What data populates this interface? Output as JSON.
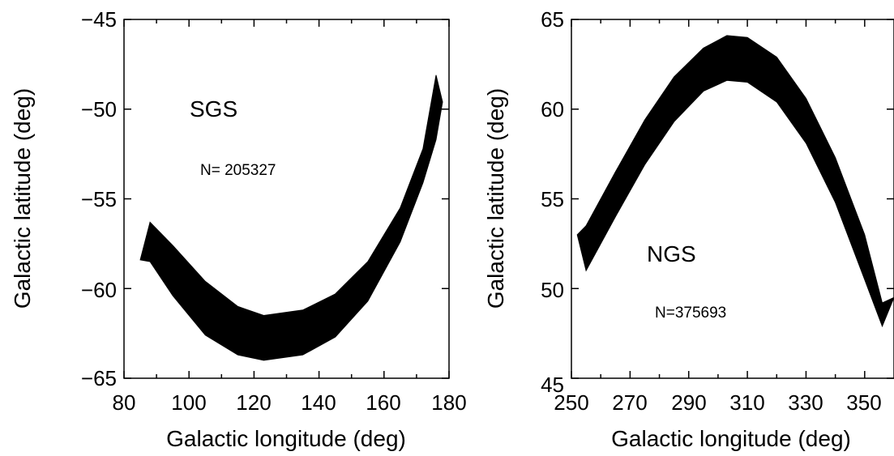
{
  "chart_data": [
    {
      "type": "area",
      "xlabel": "Galactic longitude (deg)",
      "ylabel": "Galactic latitude (deg)",
      "xlim": [
        80,
        180
      ],
      "ylim": [
        -65,
        -45
      ],
      "xticks": [
        "80",
        "100",
        "120",
        "140",
        "160",
        "180"
      ],
      "yticks": [
        "−65",
        "−60",
        "−55",
        "−50",
        "−45"
      ],
      "annotations": [
        "SGS",
        "N= 205327"
      ],
      "series": [
        {
          "x": [
            85,
            88,
            95,
            105,
            115,
            123,
            135,
            145,
            155,
            165,
            172,
            176,
            178
          ],
          "upper": [
            -58.4,
            -56.3,
            -57.6,
            -59.6,
            -61.0,
            -61.5,
            -61.2,
            -60.3,
            -58.5,
            -55.5,
            -52.2,
            -48.1,
            -49.6
          ],
          "lower": [
            -58.4,
            -58.5,
            -60.4,
            -62.6,
            -63.7,
            -64.0,
            -63.7,
            -62.7,
            -60.7,
            -57.4,
            -54.1,
            -51.7,
            -49.6
          ]
        }
      ]
    },
    {
      "type": "area",
      "xlabel": "Galactic longitude (deg)",
      "ylabel": "Galactic latitude (deg)",
      "xlim": [
        250,
        360
      ],
      "ylim": [
        45,
        65
      ],
      "xticks": [
        "250",
        "270",
        "290",
        "310",
        "330",
        "350"
      ],
      "yticks": [
        "45",
        "50",
        "55",
        "60",
        "65"
      ],
      "annotations": [
        "NGS",
        "N=375693"
      ],
      "series": [
        {
          "x": [
            252,
            255,
            265,
            275,
            285,
            295,
            303,
            310,
            320,
            330,
            340,
            350,
            356,
            360
          ],
          "upper": [
            53.0,
            53.5,
            56.5,
            59.4,
            61.8,
            63.4,
            64.1,
            64.0,
            62.9,
            60.6,
            57.3,
            53.0,
            49.2,
            49.5
          ],
          "lower": [
            53.0,
            51.0,
            54.0,
            56.9,
            59.3,
            61.0,
            61.6,
            61.5,
            60.4,
            58.1,
            54.8,
            50.5,
            47.9,
            49.5
          ]
        }
      ]
    }
  ]
}
